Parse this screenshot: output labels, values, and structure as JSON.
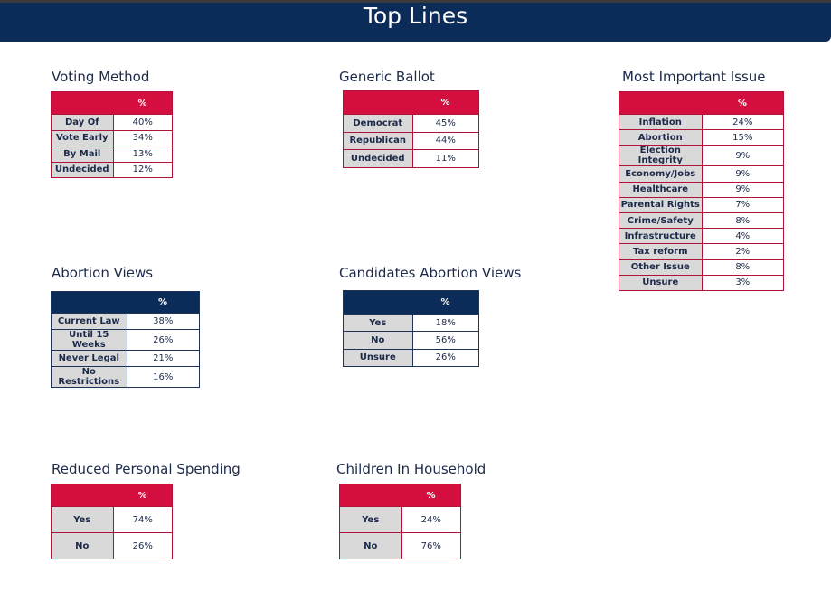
{
  "header": {
    "title": "Top Lines"
  },
  "tables": {
    "voting_method": {
      "title": "Voting Method",
      "col": "%",
      "rows": [
        [
          "Day Of",
          "40%"
        ],
        [
          "Vote Early",
          "34%"
        ],
        [
          "By Mail",
          "13%"
        ],
        [
          "Undecided",
          "12%"
        ]
      ]
    },
    "generic_ballot": {
      "title": "Generic Ballot",
      "col": "%",
      "rows": [
        [
          "Democrat",
          "45%"
        ],
        [
          "Republican",
          "44%"
        ],
        [
          "Undecided",
          "11%"
        ]
      ]
    },
    "most_important_issue": {
      "title": "Most Important Issue",
      "col": "%",
      "rows": [
        [
          "Inflation",
          "24%"
        ],
        [
          "Abortion",
          "15%"
        ],
        [
          "Election Integrity",
          "9%"
        ],
        [
          "Economy/Jobs",
          "9%"
        ],
        [
          "Healthcare",
          "9%"
        ],
        [
          "Parental Rights",
          "7%"
        ],
        [
          "Crime/Safety",
          "8%"
        ],
        [
          "Infrastructure",
          "4%"
        ],
        [
          "Tax reform",
          "2%"
        ],
        [
          "Other Issue",
          "8%"
        ],
        [
          "Unsure",
          "3%"
        ]
      ]
    },
    "abortion_views": {
      "title": "Abortion Views",
      "col": "%",
      "rows": [
        [
          "Current Law",
          "38%"
        ],
        [
          "Until 15 Weeks",
          "26%"
        ],
        [
          "Never Legal",
          "21%"
        ],
        [
          "No Restrictions",
          "16%"
        ]
      ]
    },
    "candidates_abortion_views": {
      "title": "Candidates Abortion Views",
      "col": "%",
      "rows": [
        [
          "Yes",
          "18%"
        ],
        [
          "No",
          "56%"
        ],
        [
          "Unsure",
          "26%"
        ]
      ]
    },
    "reduced_personal_spending": {
      "title": "Reduced Personal Spending",
      "col": "%",
      "rows": [
        [
          "Yes",
          "74%"
        ],
        [
          "No",
          "26%"
        ]
      ]
    },
    "children_in_household": {
      "title": "Children In Household",
      "col": "%",
      "rows": [
        [
          "Yes",
          "24%"
        ],
        [
          "No",
          "76%"
        ]
      ]
    }
  }
}
